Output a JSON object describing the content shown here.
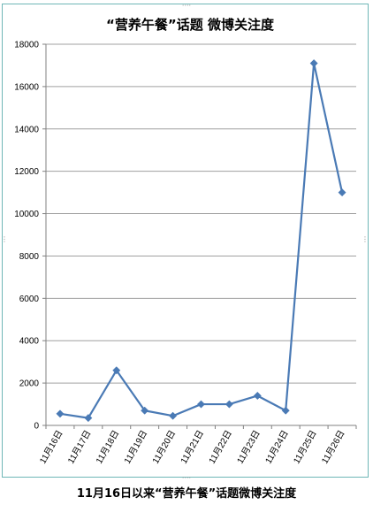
{
  "chart_data": {
    "type": "line",
    "title": "“营养午餐”话题 微博关注度",
    "xlabel": "",
    "ylabel": "",
    "categories": [
      "11月16日",
      "11月17日",
      "11月18日",
      "11月19日",
      "11月20日",
      "11月21日",
      "11月22日",
      "11月23日",
      "11月24日",
      "11月25日",
      "11月26日"
    ],
    "series": [
      {
        "values": [
          550,
          350,
          2600,
          700,
          450,
          1000,
          1000,
          1400,
          700,
          17100,
          11000
        ]
      }
    ],
    "ylim": [
      0,
      18000
    ],
    "yticks": [
      0,
      2000,
      4000,
      6000,
      8000,
      10000,
      12000,
      14000,
      16000,
      18000
    ],
    "grid": true,
    "legend": "none",
    "colors": {
      "line": "#4a7ab5",
      "marker": "#4a7ab5",
      "grid": "#a0a0a0",
      "frame": "#6fb6b6",
      "axis": "#808080"
    }
  },
  "caption": "11月16日以来“营养午餐”话题微博关注度"
}
